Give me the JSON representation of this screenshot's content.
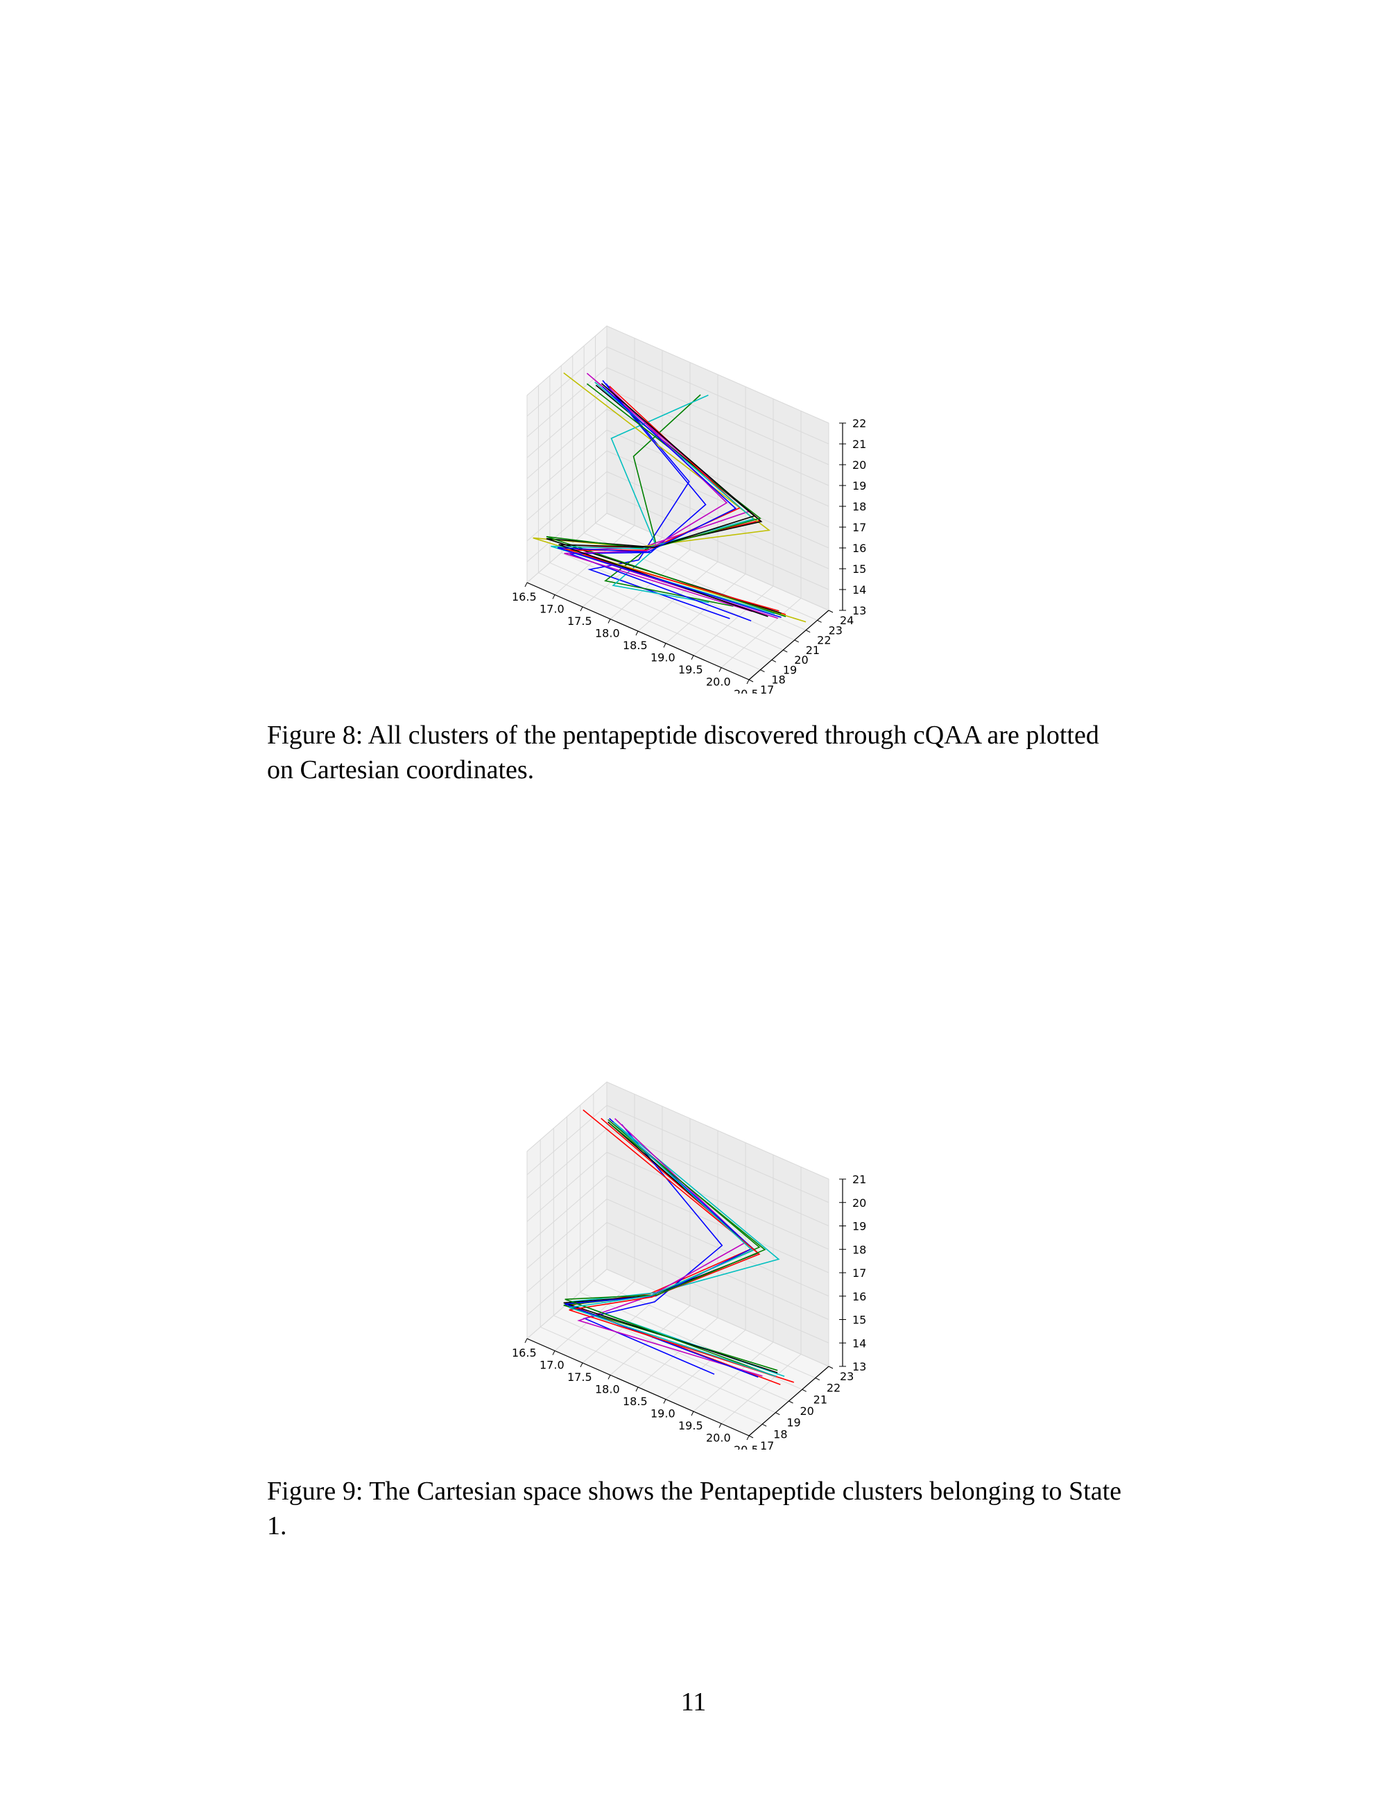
{
  "figures": [
    {
      "caption": "Figure 8:  All clusters of the pentapeptide discovered through cQAA are plotted on Cartesian coordinates.",
      "chart_data": {
        "type": "line",
        "title": "",
        "projection": "3d",
        "grid": true,
        "xlabel": "",
        "ylabel": "",
        "zlabel": "",
        "x_ticks": [
          "16.5",
          "17.0",
          "17.5",
          "18.0",
          "18.5",
          "19.0",
          "19.5",
          "20.0",
          "20.5"
        ],
        "y_ticks": [
          "17",
          "18",
          "19",
          "20",
          "21",
          "22",
          "23",
          "24"
        ],
        "z_ticks": [
          "13",
          "14",
          "15",
          "16",
          "17",
          "18",
          "19",
          "20",
          "21",
          "22"
        ],
        "xlim": [
          16.5,
          20.5
        ],
        "ylim": [
          17,
          24
        ],
        "zlim": [
          13,
          22
        ],
        "series": [
          {
            "color": "#0000ff",
            "points": [
              [
                17.0,
                21.5,
                21.0
              ],
              [
                18.6,
                21.0,
                18.4
              ],
              [
                18.1,
                19.0,
                15.0
              ],
              [
                17.3,
                18.6,
                13.8
              ],
              [
                19.6,
                19.7,
                13.6
              ]
            ]
          },
          {
            "color": "#008000",
            "points": [
              [
                18.6,
                22.0,
                22.1
              ],
              [
                17.7,
                20.5,
                18.8
              ],
              [
                18.2,
                20.0,
                15.5
              ],
              [
                17.5,
                19.0,
                13.3
              ],
              [
                19.5,
                20.5,
                13.7
              ]
            ]
          },
          {
            "color": "#ff0000",
            "points": [
              [
                16.9,
                21.0,
                21.3
              ],
              [
                19.9,
                20.9,
                18.1
              ],
              [
                18.1,
                19.9,
                15.2
              ],
              [
                16.7,
                18.8,
                14.1
              ],
              [
                20.3,
                21.2,
                13.9
              ]
            ]
          },
          {
            "color": "#00bfbf",
            "points": [
              [
                18.7,
                22.2,
                22.1
              ],
              [
                17.3,
                20.5,
                19.2
              ],
              [
                18.2,
                20.1,
                15.2
              ],
              [
                17.6,
                19.2,
                13.1
              ],
              [
                19.1,
                20.3,
                13.5
              ]
            ]
          },
          {
            "color": "#bf00bf",
            "points": [
              [
                16.8,
                20.8,
                21.6
              ],
              [
                19.7,
                20.9,
                18.3
              ],
              [
                18.0,
                19.8,
                15.1
              ],
              [
                16.8,
                18.9,
                14.0
              ],
              [
                20.2,
                21.0,
                13.7
              ]
            ]
          },
          {
            "color": "#bfbf00",
            "points": [
              [
                16.4,
                20.7,
                21.2
              ],
              [
                20.0,
                21.2,
                17.6
              ],
              [
                17.9,
                19.8,
                15.0
              ],
              [
                16.3,
                18.5,
                14.2
              ],
              [
                20.5,
                22.0,
                13.4
              ]
            ]
          },
          {
            "color": "#000000",
            "points": [
              [
                16.9,
                21.1,
                21.0
              ],
              [
                19.9,
                21.0,
                18.0
              ],
              [
                18.1,
                19.9,
                15.2
              ],
              [
                16.5,
                18.7,
                14.3
              ],
              [
                20.2,
                21.3,
                13.8
              ]
            ]
          },
          {
            "color": "#0000ff",
            "points": [
              [
                17.0,
                21.2,
                21.3
              ],
              [
                19.0,
                20.5,
                18.0
              ],
              [
                18.2,
                19.6,
                15.2
              ],
              [
                16.9,
                18.8,
                14.0
              ],
              [
                19.8,
                20.6,
                13.3
              ]
            ]
          },
          {
            "color": "#008000",
            "points": [
              [
                16.8,
                20.8,
                21.1
              ],
              [
                19.9,
                20.9,
                18.2
              ],
              [
                18.1,
                19.9,
                15.1
              ],
              [
                16.5,
                18.7,
                14.4
              ],
              [
                20.3,
                21.2,
                13.8
              ]
            ]
          },
          {
            "color": "#ff0000",
            "points": [
              [
                17.1,
                21.3,
                21.1
              ],
              [
                19.6,
                20.6,
                18.5
              ],
              [
                18.1,
                19.8,
                15.1
              ],
              [
                16.8,
                18.9,
                14.0
              ],
              [
                20.2,
                21.1,
                14.0
              ]
            ]
          },
          {
            "color": "#00bfbf",
            "points": [
              [
                16.9,
                21.0,
                21.2
              ],
              [
                19.8,
                20.8,
                18.1
              ],
              [
                18.0,
                19.9,
                15.0
              ],
              [
                16.6,
                18.6,
                14.1
              ],
              [
                20.1,
                21.2,
                13.7
              ]
            ]
          },
          {
            "color": "#bf00bf",
            "points": [
              [
                17.1,
                21.3,
                21.0
              ],
              [
                19.4,
                20.4,
                18.6
              ],
              [
                18.1,
                19.7,
                15.1
              ],
              [
                16.8,
                18.8,
                13.9
              ],
              [
                19.8,
                20.7,
                13.7
              ]
            ]
          },
          {
            "color": "#000000",
            "points": [
              [
                17.0,
                21.1,
                21.2
              ],
              [
                19.8,
                20.9,
                18.2
              ],
              [
                18.2,
                19.9,
                15.3
              ],
              [
                16.7,
                18.8,
                14.2
              ],
              [
                20.0,
                21.1,
                13.5
              ]
            ]
          },
          {
            "color": "#0000ff",
            "points": [
              [
                17.0,
                21.2,
                21.0
              ],
              [
                19.5,
                20.7,
                18.3
              ],
              [
                18.1,
                19.8,
                15.0
              ],
              [
                16.7,
                18.7,
                14.1
              ],
              [
                20.2,
                21.3,
                13.6
              ]
            ]
          }
        ]
      }
    },
    {
      "caption": "Figure 9:  The Cartesian space shows the Pentapeptide clusters belonging to State 1.",
      "chart_data": {
        "type": "line",
        "title": "",
        "projection": "3d",
        "grid": true,
        "xlabel": "",
        "ylabel": "",
        "zlabel": "",
        "x_ticks": [
          "16.5",
          "17.0",
          "17.5",
          "18.0",
          "18.5",
          "19.0",
          "19.5",
          "20.0",
          "20.5"
        ],
        "y_ticks": [
          "17",
          "18",
          "19",
          "20",
          "21",
          "22",
          "23"
        ],
        "z_ticks": [
          "13",
          "14",
          "15",
          "16",
          "17",
          "18",
          "19",
          "20",
          "21"
        ],
        "xlim": [
          16.5,
          20.5
        ],
        "ylim": [
          17,
          23
        ],
        "zlim": [
          13,
          21
        ],
        "series": [
          {
            "color": "#ff0000",
            "points": [
              [
                16.9,
                20.9,
                20.9
              ],
              [
                19.7,
                20.6,
                18.4
              ],
              [
                18.1,
                19.6,
                15.3
              ],
              [
                16.9,
                18.5,
                14.1
              ],
              [
                20.3,
                20.2,
                13.4
              ]
            ]
          },
          {
            "color": "#0000ff",
            "points": [
              [
                17.2,
                21.2,
                20.8
              ],
              [
                19.2,
                20.4,
                18.1
              ],
              [
                18.2,
                19.5,
                15.1
              ],
              [
                17.2,
                18.4,
                13.9
              ],
              [
                19.3,
                19.4,
                13.2
              ]
            ]
          },
          {
            "color": "#008000",
            "points": [
              [
                17.0,
                21.0,
                20.9
              ],
              [
                19.8,
                20.7,
                18.5
              ],
              [
                18.1,
                19.6,
                15.2
              ],
              [
                16.8,
                18.5,
                14.0
              ],
              [
                20.2,
                20.4,
                13.8
              ]
            ]
          },
          {
            "color": "#00bfbf",
            "points": [
              [
                17.1,
                21.1,
                20.8
              ],
              [
                20.1,
                20.9,
                18.2
              ],
              [
                18.2,
                19.7,
                15.4
              ],
              [
                16.9,
                18.6,
                14.2
              ],
              [
                20.3,
                20.5,
                13.6
              ]
            ]
          },
          {
            "color": "#bf00bf",
            "points": [
              [
                17.1,
                21.1,
                21.0
              ],
              [
                19.6,
                20.5,
                18.6
              ],
              [
                18.1,
                19.6,
                15.2
              ],
              [
                17.1,
                18.4,
                13.7
              ],
              [
                20.0,
                20.1,
                13.5
              ]
            ]
          },
          {
            "color": "#000000",
            "points": [
              [
                17.0,
                21.0,
                20.8
              ],
              [
                19.8,
                20.6,
                18.3
              ],
              [
                18.1,
                19.6,
                15.2
              ],
              [
                16.8,
                18.5,
                14.1
              ],
              [
                20.2,
                20.4,
                13.7
              ]
            ]
          },
          {
            "color": "#0000ff",
            "points": [
              [
                17.0,
                21.1,
                20.9
              ],
              [
                19.7,
                20.6,
                18.4
              ],
              [
                18.2,
                19.6,
                15.3
              ],
              [
                16.8,
                18.6,
                14.0
              ],
              [
                19.9,
                20.2,
                13.3
              ]
            ]
          },
          {
            "color": "#ff0000",
            "points": [
              [
                16.6,
                20.8,
                21.0
              ],
              [
                19.8,
                20.7,
                18.2
              ],
              [
                18.1,
                19.7,
                15.1
              ],
              [
                16.9,
                18.5,
                13.9
              ],
              [
                20.4,
                20.8,
                13.3
              ]
            ]
          },
          {
            "color": "#008000",
            "points": [
              [
                17.0,
                21.1,
                20.7
              ],
              [
                19.9,
                20.7,
                18.5
              ],
              [
                18.2,
                19.7,
                15.3
              ],
              [
                16.8,
                18.6,
                14.2
              ],
              [
                20.1,
                20.4,
                13.5
              ]
            ]
          },
          {
            "color": "#00bfbf",
            "points": [
              [
                17.1,
                21.0,
                20.9
              ],
              [
                19.7,
                20.6,
                18.3
              ],
              [
                18.1,
                19.6,
                15.2
              ],
              [
                16.9,
                18.5,
                14.0
              ],
              [
                20.2,
                20.3,
                13.6
              ]
            ]
          }
        ]
      }
    }
  ],
  "page": {
    "number": "11"
  }
}
